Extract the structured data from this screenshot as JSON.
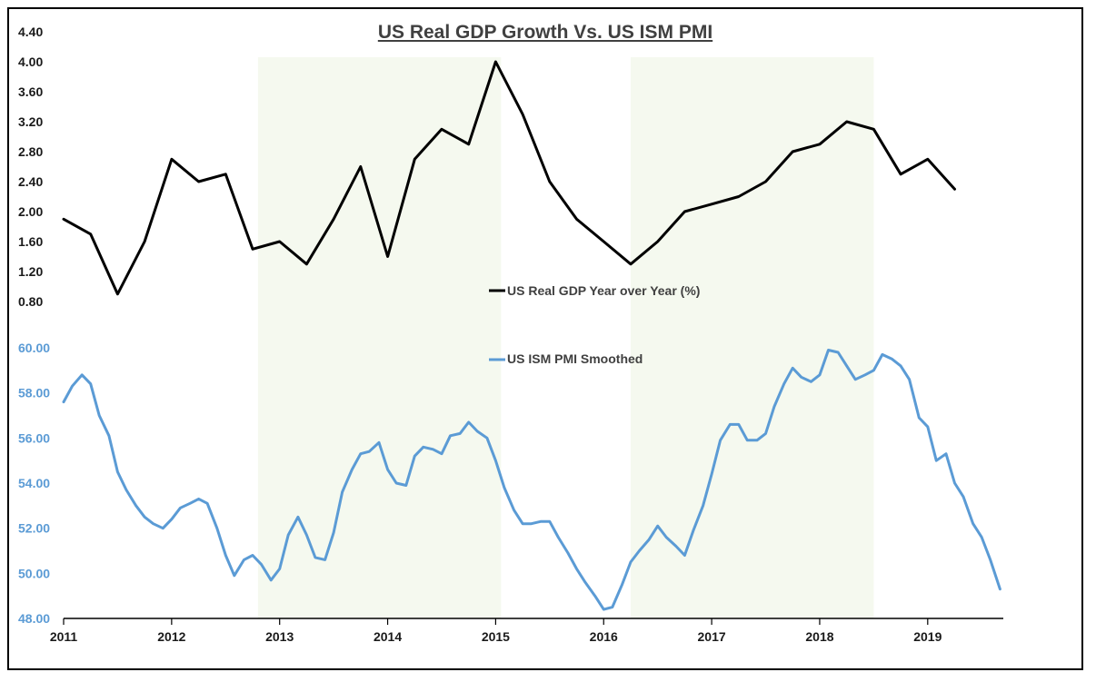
{
  "chart_data": {
    "type": "line",
    "title": "US Real GDP Growth Vs. US ISM PMI",
    "shaded_periods": [
      [
        2012.8,
        2015.05
      ],
      [
        2016.25,
        2018.5
      ]
    ],
    "x_axis": {
      "range": [
        2011,
        2019.7
      ],
      "tick_labels": [
        "2011",
        "2012",
        "2013",
        "2014",
        "2015",
        "2016",
        "2017",
        "2018",
        "2019"
      ]
    },
    "panels": [
      {
        "name": "gdp",
        "ylim": [
          0.8,
          4.4
        ],
        "tick_labels": [
          "4.40",
          "4.00",
          "3.60",
          "3.20",
          "2.80",
          "2.40",
          "2.00",
          "1.60",
          "1.20",
          "0.80"
        ],
        "tick_color": "#1a1a1a"
      },
      {
        "name": "pmi",
        "ylim": [
          48,
          60
        ],
        "tick_labels": [
          "60.00",
          "58.00",
          "56.00",
          "54.00",
          "52.00",
          "50.00",
          "48.00"
        ],
        "tick_color": "#5b9bd5"
      }
    ],
    "series": [
      {
        "name": "US Real GDP Year over Year (%)",
        "panel": "gdp",
        "color": "#000000",
        "x": [
          2011.0,
          2011.25,
          2011.5,
          2011.75,
          2012.0,
          2012.25,
          2012.5,
          2012.75,
          2013.0,
          2013.25,
          2013.5,
          2013.75,
          2014.0,
          2014.25,
          2014.5,
          2014.75,
          2015.0,
          2015.25,
          2015.5,
          2015.75,
          2016.0,
          2016.25,
          2016.5,
          2016.75,
          2017.0,
          2017.25,
          2017.5,
          2017.75,
          2018.0,
          2018.25,
          2018.5,
          2018.75,
          2019.0,
          2019.25
        ],
        "values": [
          1.9,
          1.7,
          0.9,
          1.6,
          2.7,
          2.4,
          2.5,
          1.5,
          1.6,
          1.3,
          1.9,
          2.6,
          1.4,
          2.7,
          3.1,
          2.9,
          4.0,
          3.3,
          2.4,
          1.9,
          1.6,
          1.3,
          1.6,
          2.0,
          2.1,
          2.2,
          2.4,
          2.8,
          2.9,
          3.2,
          3.1,
          2.5,
          2.7,
          2.3
        ]
      },
      {
        "name": "US ISM PMI Smoothed",
        "panel": "pmi",
        "color": "#5b9bd5",
        "x": [
          2011.0,
          2011.08,
          2011.17,
          2011.25,
          2011.33,
          2011.42,
          2011.5,
          2011.58,
          2011.67,
          2011.75,
          2011.83,
          2011.92,
          2012.0,
          2012.08,
          2012.17,
          2012.25,
          2012.33,
          2012.42,
          2012.5,
          2012.58,
          2012.67,
          2012.75,
          2012.83,
          2012.92,
          2013.0,
          2013.08,
          2013.17,
          2013.25,
          2013.33,
          2013.42,
          2013.5,
          2013.58,
          2013.67,
          2013.75,
          2013.83,
          2013.92,
          2014.0,
          2014.08,
          2014.17,
          2014.25,
          2014.33,
          2014.42,
          2014.5,
          2014.58,
          2014.67,
          2014.75,
          2014.83,
          2014.92,
          2015.0,
          2015.08,
          2015.17,
          2015.25,
          2015.33,
          2015.42,
          2015.5,
          2015.58,
          2015.67,
          2015.75,
          2015.83,
          2015.92,
          2016.0,
          2016.08,
          2016.17,
          2016.25,
          2016.33,
          2016.42,
          2016.5,
          2016.58,
          2016.67,
          2016.75,
          2016.83,
          2016.92,
          2017.0,
          2017.08,
          2017.17,
          2017.25,
          2017.33,
          2017.42,
          2017.5,
          2017.58,
          2017.67,
          2017.75,
          2017.83,
          2017.92,
          2018.0,
          2018.08,
          2018.17,
          2018.25,
          2018.33,
          2018.42,
          2018.5,
          2018.58,
          2018.67,
          2018.75,
          2018.83,
          2018.92,
          2019.0,
          2019.08,
          2019.17,
          2019.25,
          2019.33,
          2019.42,
          2019.5,
          2019.58,
          2019.67
        ],
        "values": [
          57.6,
          58.3,
          58.8,
          58.4,
          57.0,
          56.1,
          54.5,
          53.7,
          53.0,
          52.5,
          52.2,
          52.0,
          52.4,
          52.9,
          53.1,
          53.3,
          53.1,
          52.0,
          50.8,
          49.9,
          50.6,
          50.8,
          50.4,
          49.7,
          50.2,
          51.7,
          52.5,
          51.7,
          50.7,
          50.6,
          51.8,
          53.6,
          54.6,
          55.3,
          55.4,
          55.8,
          54.6,
          54.0,
          53.9,
          55.2,
          55.6,
          55.5,
          55.3,
          56.1,
          56.2,
          56.7,
          56.3,
          56.0,
          55.0,
          53.8,
          52.8,
          52.2,
          52.2,
          52.3,
          52.3,
          51.6,
          50.9,
          50.2,
          49.6,
          49.0,
          48.4,
          48.5,
          49.5,
          50.5,
          51.0,
          51.5,
          52.1,
          51.6,
          51.2,
          50.8,
          51.9,
          53.0,
          54.4,
          55.9,
          56.6,
          56.6,
          55.9,
          55.9,
          56.2,
          57.4,
          58.4,
          59.1,
          58.7,
          58.5,
          58.8,
          59.9,
          59.8,
          59.2,
          58.6,
          58.8,
          59.0,
          59.7,
          59.5,
          59.2,
          58.6,
          56.9,
          56.5,
          55.0,
          55.3,
          54.0,
          53.4,
          52.2,
          51.6,
          50.6,
          49.3
        ]
      }
    ],
    "legend": [
      {
        "label": "US Real GDP Year over Year (%)",
        "color": "#000000"
      },
      {
        "label": "US ISM PMI Smoothed",
        "color": "#5b9bd5"
      }
    ],
    "colors": {
      "shade": "#f5f9ef",
      "frame": "#000000",
      "title": "#404040"
    }
  }
}
